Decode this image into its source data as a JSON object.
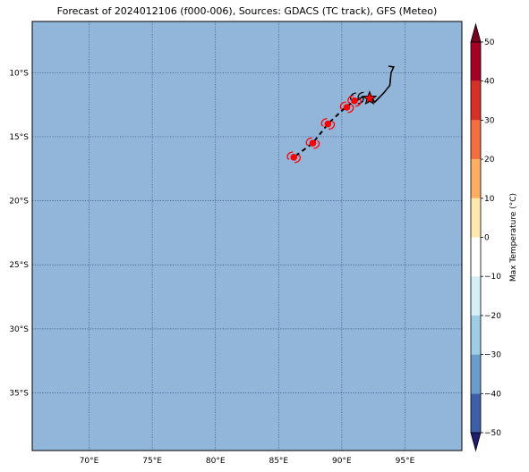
{
  "title": "Forecast of 2024012106 (f000-006), Sources: GDACS (TC track), GFS (Meteo)",
  "map": {
    "lon_range": [
      65.5,
      99.5
    ],
    "lat_range": [
      -39.5,
      -6.0
    ],
    "ocean_color": "#92b5da",
    "grid_color": "#3a4f85",
    "lon_ticks": [
      70,
      75,
      80,
      85,
      90,
      95
    ],
    "lon_tick_labels": [
      "70°E",
      "75°E",
      "80°E",
      "85°E",
      "90°E",
      "95°E"
    ],
    "lat_ticks": [
      -10,
      -15,
      -20,
      -25,
      -30,
      -35
    ],
    "lat_tick_labels": [
      "10°S",
      "15°S",
      "20°S",
      "25°S",
      "30°S",
      "35°S"
    ]
  },
  "track": {
    "past_track": [
      [
        93.7,
        -9.5
      ],
      [
        94.1,
        -9.55
      ],
      [
        93.9,
        -10.0
      ],
      [
        93.8,
        -11.0
      ],
      [
        93.3,
        -11.6
      ],
      [
        92.6,
        -12.3
      ],
      [
        92.4,
        -12.0
      ],
      [
        91.8,
        -11.85
      ],
      [
        91.2,
        -12.1
      ]
    ],
    "current_position": [
      92.2,
      -12.0
    ],
    "forecast_track": [
      [
        91.3,
        -12.1
      ],
      [
        90.4,
        -12.6
      ],
      [
        88.9,
        -14.0
      ],
      [
        87.7,
        -15.5
      ],
      [
        86.2,
        -16.6
      ]
    ],
    "forecast_points": [
      [
        91.0,
        -12.2
      ],
      [
        90.4,
        -12.7
      ],
      [
        88.9,
        -14.0
      ],
      [
        87.7,
        -15.5
      ],
      [
        86.2,
        -16.6
      ]
    ],
    "past_symbols": [
      [
        91.2,
        -12.0
      ],
      [
        91.8,
        -11.95
      ]
    ],
    "marker_color": "#ff0000",
    "line_color": "#000000"
  },
  "colorbar": {
    "label": "Max Temperature (°C)",
    "ticks": [
      50,
      40,
      30,
      20,
      10,
      0,
      -10,
      -20,
      -30,
      -40,
      -50
    ],
    "tick_labels": [
      "50",
      "40",
      "30",
      "20",
      "10",
      "0",
      "−10",
      "−20",
      "−30",
      "−40",
      "−50"
    ],
    "colors_top_to_bottom": [
      "#a50026",
      "#d73027",
      "#f46d43",
      "#fdae61",
      "#fee090",
      "#ffffbf",
      "#e0f3f8",
      "#abd9e9",
      "#74add1",
      "#4575b4",
      "#313695"
    ],
    "segments_top_to_bottom": [
      {
        "from": 50,
        "to": 40,
        "color": "#a50026"
      },
      {
        "from": 40,
        "to": 30,
        "color": "#d73027"
      },
      {
        "from": 30,
        "to": 20,
        "color": "#f46d43"
      },
      {
        "from": 20,
        "to": 10,
        "color": "#fdae61"
      },
      {
        "from": 10,
        "to": 0,
        "color": "#fee8b0"
      },
      {
        "from": 0,
        "to": -10,
        "color": "#ffffff"
      },
      {
        "from": -10,
        "to": -20,
        "color": "#d6eef5"
      },
      {
        "from": -20,
        "to": -30,
        "color": "#9fcde3"
      },
      {
        "from": -30,
        "to": -40,
        "color": "#6a9ccc"
      },
      {
        "from": -40,
        "to": -50,
        "color": "#3c5fa8"
      }
    ],
    "extend_top_color": "#7a0022",
    "extend_bottom_color": "#1d1f6e"
  }
}
